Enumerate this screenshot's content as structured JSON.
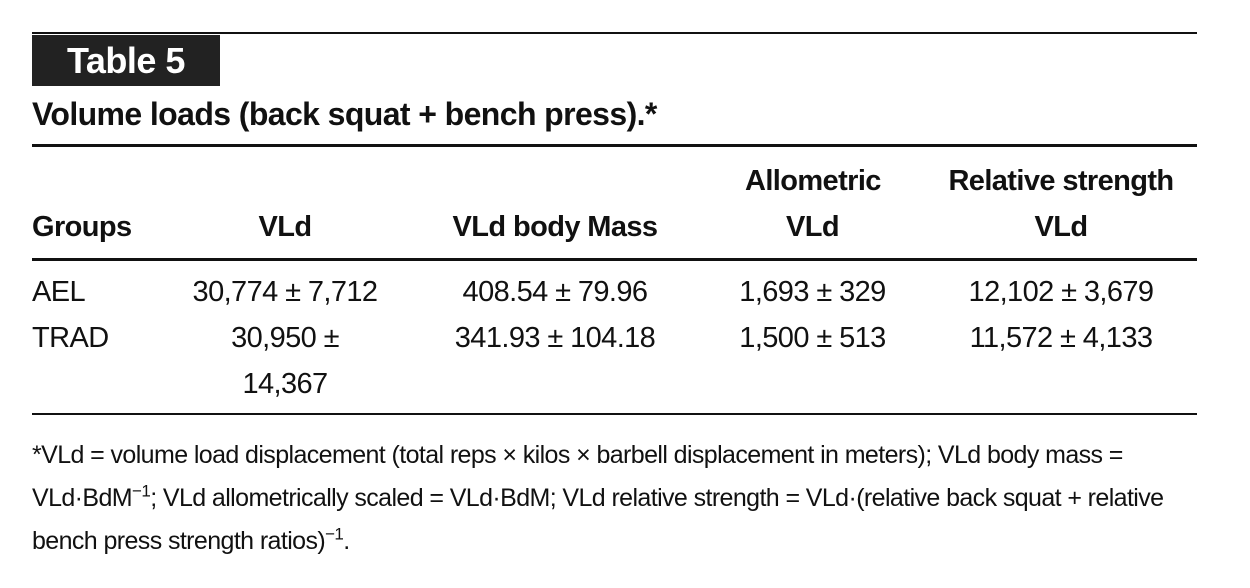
{
  "label": "Table 5",
  "title": "Volume loads (back squat + bench press).*",
  "table": {
    "header": [
      "Groups",
      "VLd",
      "VLd body Mass",
      "Allometric VLd",
      "Relative strength VLd"
    ],
    "rows": [
      [
        "AEL",
        "30,774 ± 7,712",
        "408.54 ± 79.96",
        "1,693 ± 329",
        "12,102 ± 3,679"
      ],
      [
        "TRAD",
        "30,950 ± 14,367",
        "341.93 ± 104.18",
        "1,500 ± 513",
        "11,572 ± 4,133"
      ]
    ]
  },
  "footnote": [
    "*VLd = volume load displacement (total reps × kilos × barbell displacement in meters); VLd body mass = VLd·BdM",
    "−1",
    "; VLd allometrically scaled = VLd·BdM; VLd relative strength = VLd·(relative back squat + relative bench press strength ratios)",
    "−1",
    "."
  ]
}
